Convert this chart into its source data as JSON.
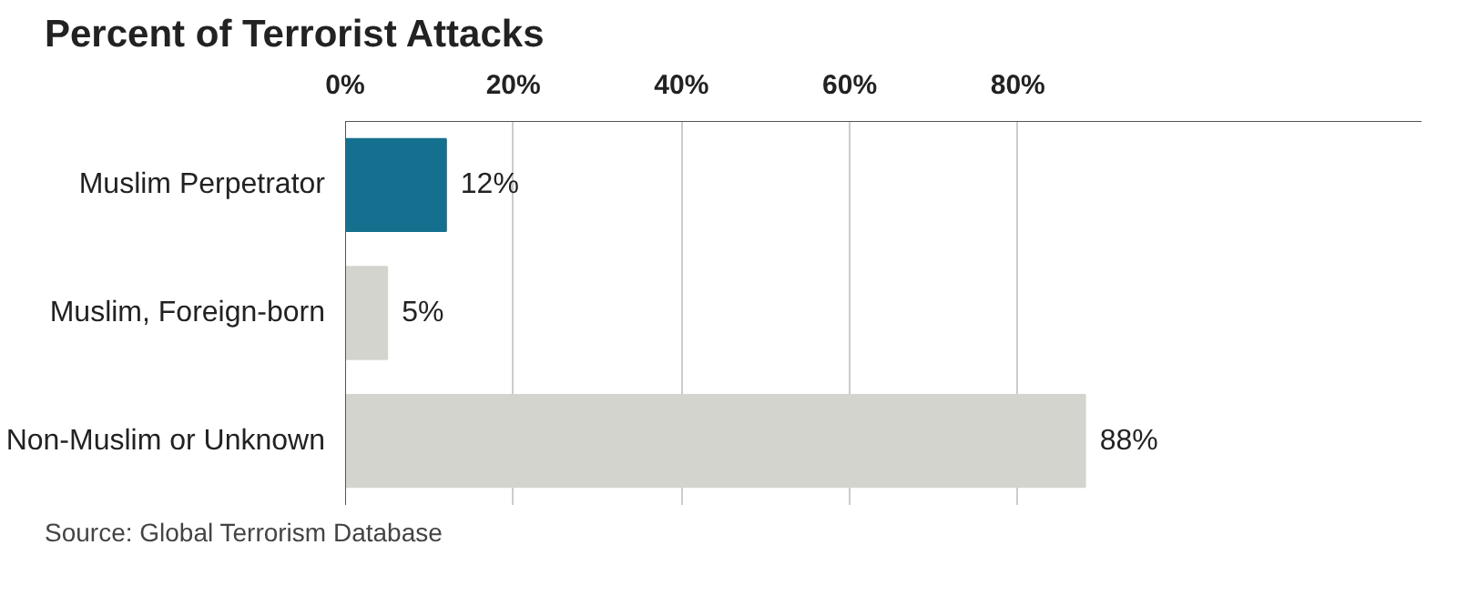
{
  "chart_data": {
    "type": "bar",
    "orientation": "horizontal",
    "title": "Percent of Terrorist Attacks",
    "categories": [
      "Muslim Perpetrator",
      "Muslim, Foreign-born",
      "Non-Muslim or Unknown"
    ],
    "values": [
      12,
      5,
      88
    ],
    "colors": [
      "#156f8f",
      "#d4d4cf",
      "#d4d4cf"
    ],
    "value_labels": [
      "12%",
      "5%",
      "88%"
    ],
    "xlim": [
      0,
      128
    ],
    "xticks": [
      {
        "value": 0,
        "label": "0%"
      },
      {
        "value": 20,
        "label": "20%"
      },
      {
        "value": 40,
        "label": "40%"
      },
      {
        "value": 60,
        "label": "60%"
      },
      {
        "value": 80,
        "label": "80%"
      }
    ],
    "grid": "x",
    "annotations": [
      "Source: Global Terrorism Database"
    ]
  }
}
